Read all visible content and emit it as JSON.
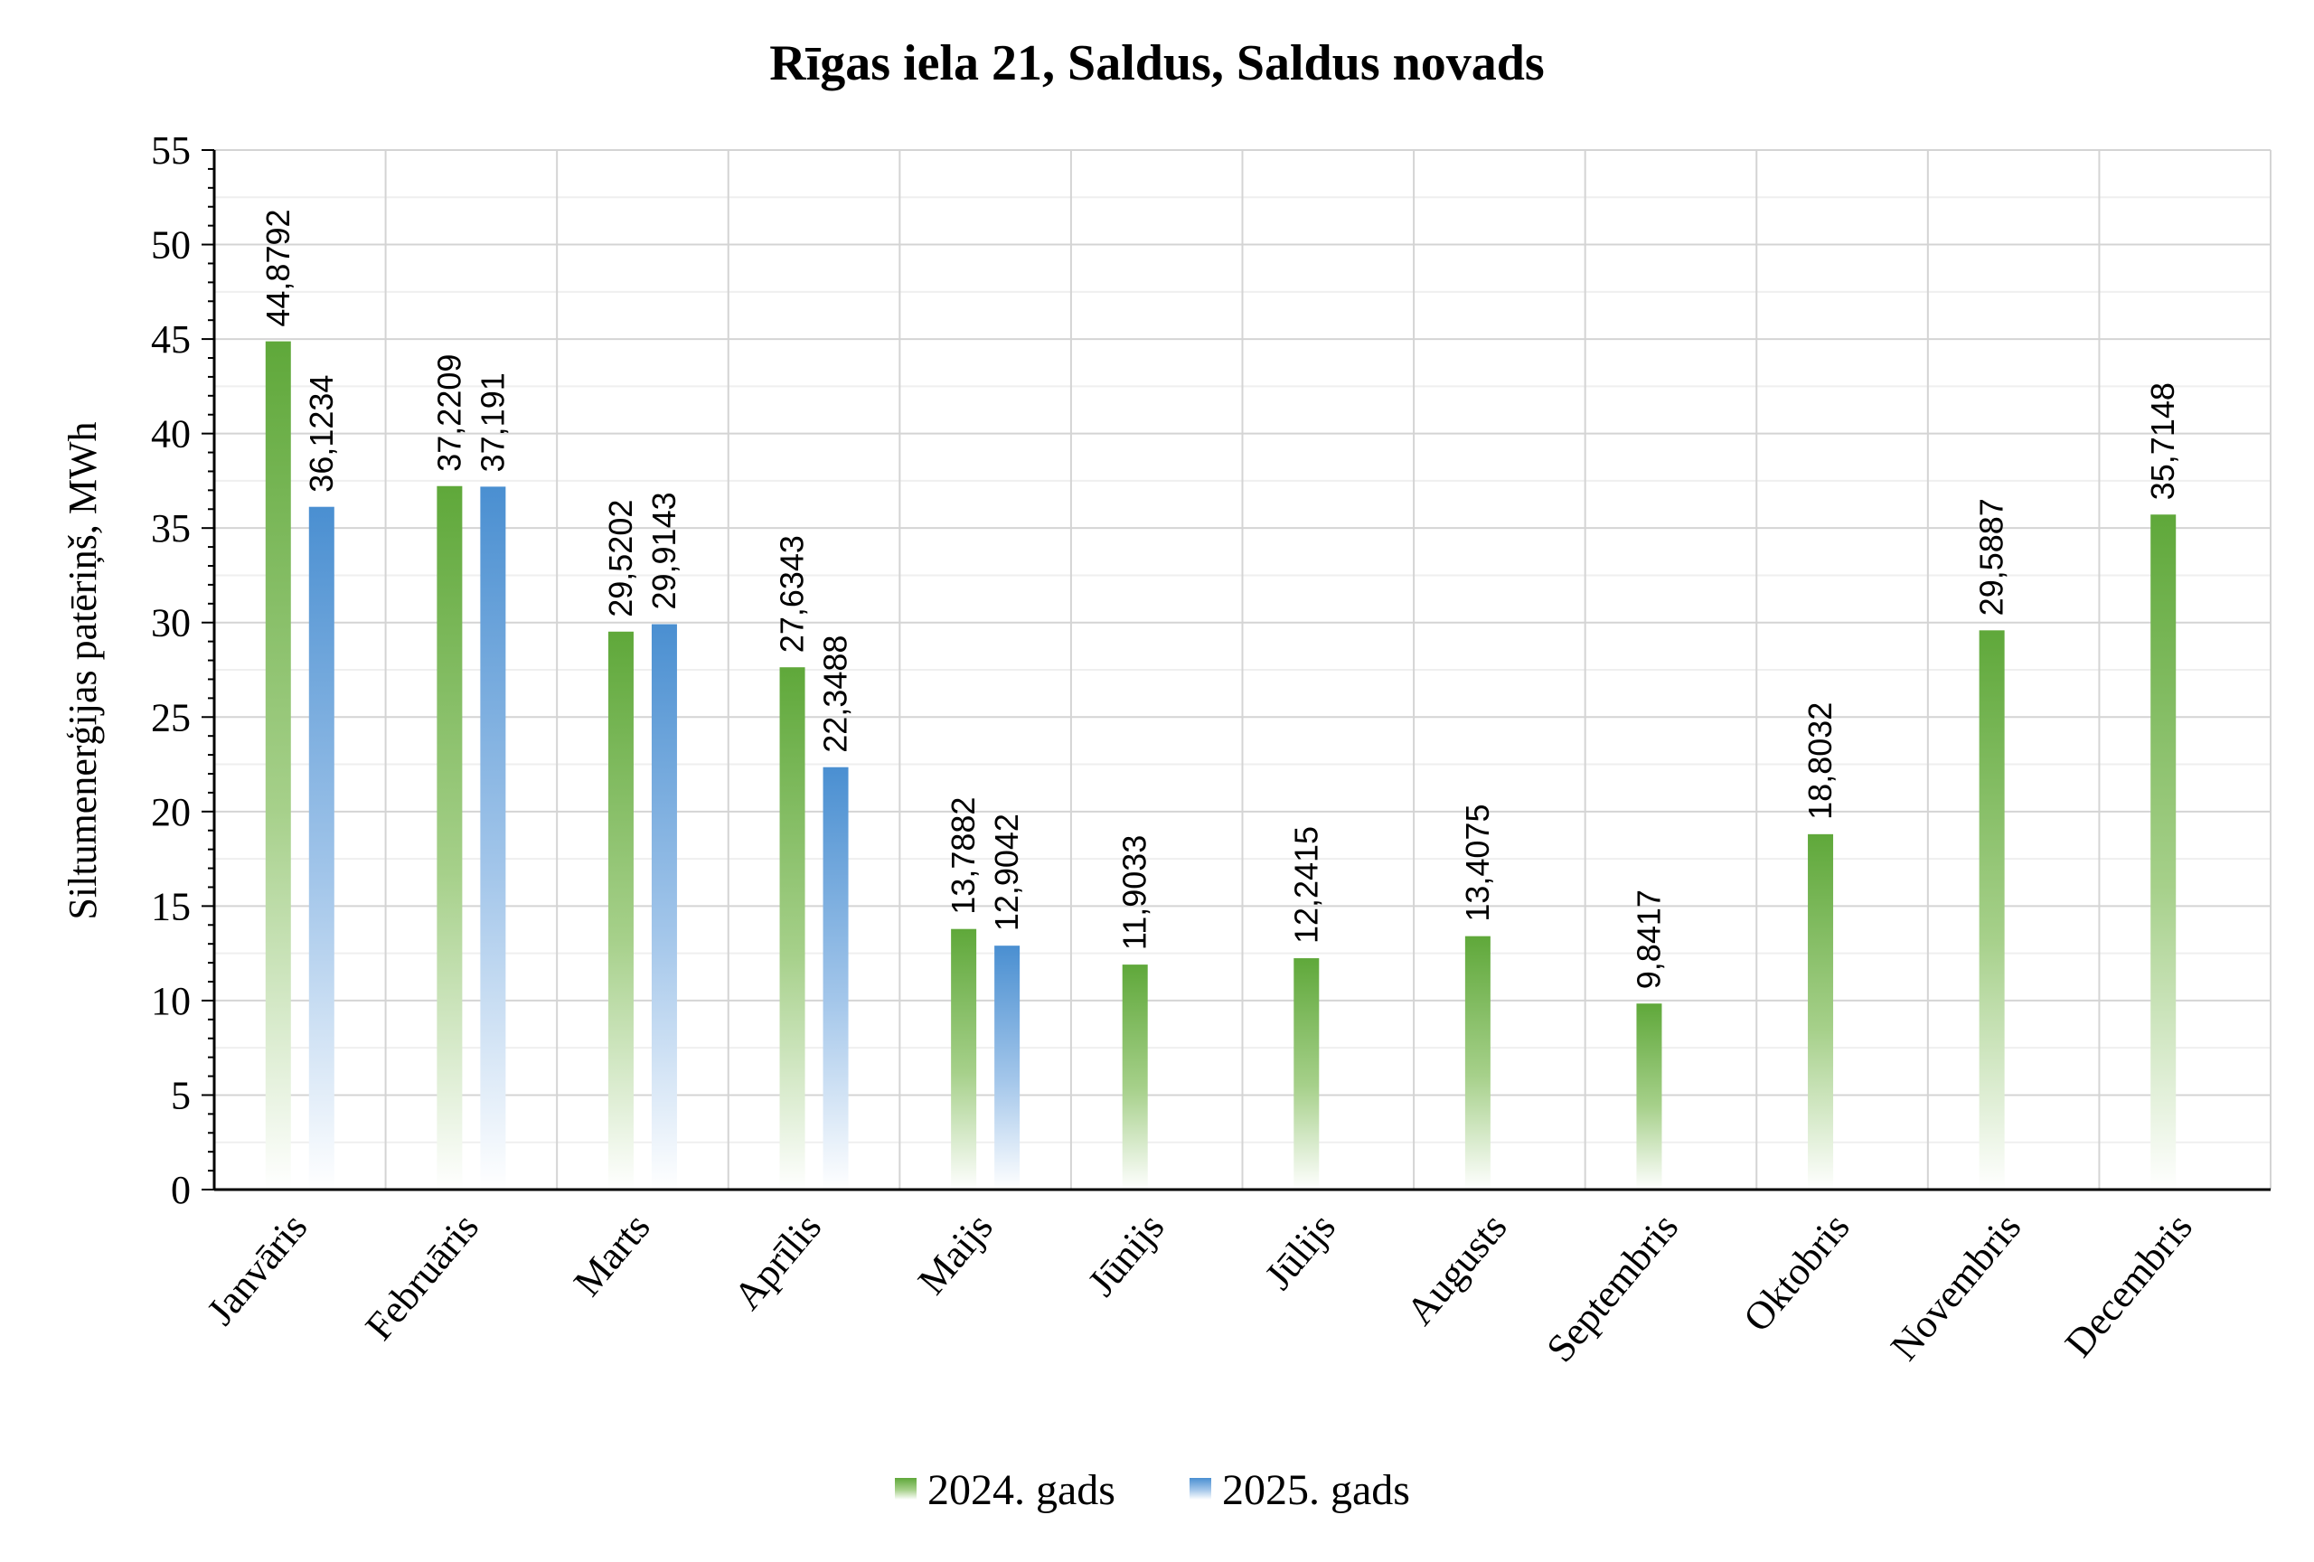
{
  "chart_data": {
    "type": "bar",
    "title": "Rīgas iela 21, Saldus, Saldus novads",
    "ylabel": "Siltumenerģijas patēriņš, MWh",
    "xlabel": "",
    "ylim": [
      0,
      55
    ],
    "yticks": [
      0,
      5,
      10,
      15,
      20,
      25,
      30,
      35,
      40,
      45,
      50,
      55
    ],
    "grid": true,
    "legend_position": "bottom",
    "categories": [
      "Janvāris",
      "Februāris",
      "Marts",
      "Aprīlis",
      "Maijs",
      "Jūnijs",
      "Jūlijs",
      "Augusts",
      "Septembris",
      "Oktobris",
      "Novembris",
      "Decembris"
    ],
    "series": [
      {
        "name": "2024. gads",
        "color": "#70ad47",
        "values": [
          44.8792,
          37.2209,
          29.5202,
          27.6343,
          13.7882,
          11.9033,
          12.2415,
          13.4075,
          9.8417,
          18.8032,
          29.5887,
          35.7148
        ],
        "labels": [
          "44,8792",
          "37,2209",
          "29,5202",
          "27,6343",
          "13,7882",
          "11,9033",
          "12,2415",
          "13,4075",
          "9,8417",
          "18,8032",
          "29,5887",
          "35,7148"
        ]
      },
      {
        "name": "2025. gads",
        "color": "#5b9bd5",
        "values": [
          36.1234,
          37.191,
          29.9143,
          22.3488,
          12.9042,
          null,
          null,
          null,
          null,
          null,
          null,
          null
        ],
        "labels": [
          "36,1234",
          "37,191",
          "29,9143",
          "22,3488",
          "12,9042",
          null,
          null,
          null,
          null,
          null,
          null,
          null
        ]
      }
    ]
  }
}
